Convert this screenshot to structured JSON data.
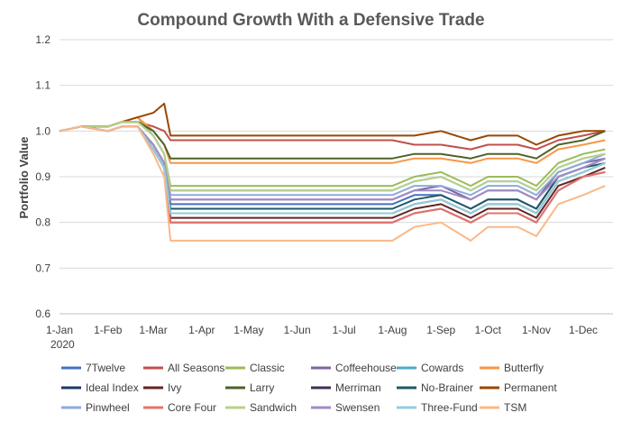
{
  "chart_data": {
    "type": "line",
    "title": "Compound Growth With a Defensive Trade",
    "xlabel": "",
    "ylabel": "Portfolio Value",
    "ylim": [
      0.6,
      1.2
    ],
    "yticks": [
      "0.6",
      "0.7",
      "0.8",
      "0.9",
      "1.0",
      "1.1",
      "1.2"
    ],
    "xticks": [
      "1-Jan",
      "1-Feb",
      "1-Mar",
      "1-Apr",
      "1-May",
      "1-Jun",
      "1-Jul",
      "1-Aug",
      "1-Sep",
      "1-Oct",
      "1-Nov",
      "1-Dec"
    ],
    "xtick_year": "2020",
    "grid": "horizontal",
    "legend_position": "bottom",
    "series": [
      {
        "name": "7Twelve",
        "color": "#4472c4",
        "x": [
          "2020-01-01",
          "2020-01-15",
          "2020-02-01",
          "2020-02-10",
          "2020-02-20",
          "2020-03-01",
          "2020-03-08",
          "2020-03-12",
          "2020-08-01",
          "2020-08-15",
          "2020-09-01",
          "2020-09-20",
          "2020-10-01",
          "2020-10-20",
          "2020-11-01",
          "2020-11-15",
          "2020-12-01",
          "2020-12-15"
        ],
        "y": [
          1.0,
          1.01,
          1.0,
          1.01,
          1.01,
          0.97,
          0.93,
          0.84,
          0.84,
          0.86,
          0.86,
          0.83,
          0.85,
          0.85,
          0.83,
          0.9,
          0.92,
          0.94
        ]
      },
      {
        "name": "All Seasons",
        "color": "#c0504d",
        "x": [
          "2020-01-01",
          "2020-01-15",
          "2020-02-01",
          "2020-02-10",
          "2020-02-20",
          "2020-03-01",
          "2020-03-08",
          "2020-03-12",
          "2020-08-01",
          "2020-08-15",
          "2020-09-01",
          "2020-09-20",
          "2020-10-01",
          "2020-10-20",
          "2020-11-01",
          "2020-11-15",
          "2020-12-01",
          "2020-12-15"
        ],
        "y": [
          1.0,
          1.01,
          1.01,
          1.02,
          1.02,
          1.01,
          1.0,
          0.98,
          0.98,
          0.97,
          0.97,
          0.96,
          0.97,
          0.97,
          0.96,
          0.98,
          0.99,
          1.0
        ]
      },
      {
        "name": "Classic",
        "color": "#9bbb59",
        "x": [
          "2020-01-01",
          "2020-01-15",
          "2020-02-01",
          "2020-02-10",
          "2020-02-20",
          "2020-03-01",
          "2020-03-08",
          "2020-03-12",
          "2020-08-01",
          "2020-08-15",
          "2020-09-01",
          "2020-09-20",
          "2020-10-01",
          "2020-10-20",
          "2020-11-01",
          "2020-11-15",
          "2020-12-01",
          "2020-12-15"
        ],
        "y": [
          1.0,
          1.01,
          1.01,
          1.02,
          1.03,
          0.99,
          0.95,
          0.88,
          0.88,
          0.9,
          0.91,
          0.88,
          0.9,
          0.9,
          0.88,
          0.93,
          0.95,
          0.96
        ]
      },
      {
        "name": "Coffeehouse",
        "color": "#8064a2",
        "x": [
          "2020-01-01",
          "2020-01-15",
          "2020-02-01",
          "2020-02-10",
          "2020-02-20",
          "2020-03-01",
          "2020-03-08",
          "2020-03-12",
          "2020-08-01",
          "2020-08-15",
          "2020-09-01",
          "2020-09-20",
          "2020-10-01",
          "2020-10-20",
          "2020-11-01",
          "2020-11-15",
          "2020-12-01",
          "2020-12-15"
        ],
        "y": [
          1.0,
          1.01,
          1.0,
          1.01,
          1.01,
          0.97,
          0.93,
          0.85,
          0.85,
          0.87,
          0.88,
          0.85,
          0.87,
          0.87,
          0.85,
          0.91,
          0.93,
          0.94
        ]
      },
      {
        "name": "Cowards",
        "color": "#4bacc6",
        "x": [
          "2020-01-01",
          "2020-01-15",
          "2020-02-01",
          "2020-02-10",
          "2020-02-20",
          "2020-03-01",
          "2020-03-08",
          "2020-03-12",
          "2020-08-01",
          "2020-08-15",
          "2020-09-01",
          "2020-09-20",
          "2020-10-01",
          "2020-10-20",
          "2020-11-01",
          "2020-11-15",
          "2020-12-01",
          "2020-12-15"
        ],
        "y": [
          1.0,
          1.01,
          1.01,
          1.02,
          1.02,
          0.99,
          0.95,
          0.87,
          0.87,
          0.89,
          0.9,
          0.87,
          0.89,
          0.89,
          0.87,
          0.92,
          0.94,
          0.95
        ]
      },
      {
        "name": "Butterfly",
        "color": "#f79646",
        "x": [
          "2020-01-01",
          "2020-01-15",
          "2020-02-01",
          "2020-02-10",
          "2020-02-20",
          "2020-03-01",
          "2020-03-08",
          "2020-03-12",
          "2020-08-01",
          "2020-08-15",
          "2020-09-01",
          "2020-09-20",
          "2020-10-01",
          "2020-10-20",
          "2020-11-01",
          "2020-11-15",
          "2020-12-01",
          "2020-12-15"
        ],
        "y": [
          1.0,
          1.01,
          1.01,
          1.02,
          1.03,
          1.0,
          0.97,
          0.93,
          0.93,
          0.94,
          0.94,
          0.93,
          0.94,
          0.94,
          0.93,
          0.96,
          0.97,
          0.98
        ]
      },
      {
        "name": "Ideal Index",
        "color": "#1f3864",
        "x": [
          "2020-01-01",
          "2020-01-15",
          "2020-02-01",
          "2020-02-10",
          "2020-02-20",
          "2020-03-01",
          "2020-03-08",
          "2020-03-12",
          "2020-08-01",
          "2020-08-15",
          "2020-09-01",
          "2020-09-20",
          "2020-10-01",
          "2020-10-20",
          "2020-11-01",
          "2020-11-15",
          "2020-12-01",
          "2020-12-15"
        ],
        "y": [
          1.0,
          1.01,
          1.0,
          1.01,
          1.01,
          0.96,
          0.92,
          0.8,
          0.8,
          0.82,
          0.83,
          0.8,
          0.82,
          0.82,
          0.8,
          0.87,
          0.9,
          0.91
        ]
      },
      {
        "name": "Ivy",
        "color": "#632523",
        "x": [
          "2020-01-01",
          "2020-01-15",
          "2020-02-01",
          "2020-02-10",
          "2020-02-20",
          "2020-03-01",
          "2020-03-08",
          "2020-03-12",
          "2020-08-01",
          "2020-08-15",
          "2020-09-01",
          "2020-09-20",
          "2020-10-01",
          "2020-10-20",
          "2020-11-01",
          "2020-11-15",
          "2020-12-01",
          "2020-12-15"
        ],
        "y": [
          1.0,
          1.01,
          1.0,
          1.01,
          1.01,
          0.96,
          0.92,
          0.81,
          0.81,
          0.83,
          0.84,
          0.81,
          0.83,
          0.83,
          0.81,
          0.88,
          0.9,
          0.92
        ]
      },
      {
        "name": "Larry",
        "color": "#4f6228",
        "x": [
          "2020-01-01",
          "2020-01-15",
          "2020-02-01",
          "2020-02-10",
          "2020-02-20",
          "2020-03-01",
          "2020-03-08",
          "2020-03-12",
          "2020-08-01",
          "2020-08-15",
          "2020-09-01",
          "2020-09-20",
          "2020-10-01",
          "2020-10-20",
          "2020-11-01",
          "2020-11-15",
          "2020-12-01",
          "2020-12-15"
        ],
        "y": [
          1.0,
          1.01,
          1.01,
          1.02,
          1.02,
          1.0,
          0.97,
          0.94,
          0.94,
          0.95,
          0.95,
          0.94,
          0.95,
          0.95,
          0.94,
          0.97,
          0.98,
          1.0
        ]
      },
      {
        "name": "Merriman",
        "color": "#3f3151",
        "x": [
          "2020-01-01",
          "2020-01-15",
          "2020-02-01",
          "2020-02-10",
          "2020-02-20",
          "2020-03-01",
          "2020-03-08",
          "2020-03-12",
          "2020-08-01",
          "2020-08-15",
          "2020-09-01",
          "2020-09-20",
          "2020-10-01",
          "2020-10-20",
          "2020-11-01",
          "2020-11-15",
          "2020-12-01",
          "2020-12-15"
        ],
        "y": [
          1.0,
          1.01,
          1.0,
          1.01,
          1.01,
          0.96,
          0.92,
          0.82,
          0.82,
          0.84,
          0.85,
          0.82,
          0.84,
          0.84,
          0.82,
          0.89,
          0.91,
          0.93
        ]
      },
      {
        "name": "No-Brainer",
        "color": "#215867",
        "x": [
          "2020-01-01",
          "2020-01-15",
          "2020-02-01",
          "2020-02-10",
          "2020-02-20",
          "2020-03-01",
          "2020-03-08",
          "2020-03-12",
          "2020-08-01",
          "2020-08-15",
          "2020-09-01",
          "2020-09-20",
          "2020-10-01",
          "2020-10-20",
          "2020-11-01",
          "2020-11-15",
          "2020-12-01",
          "2020-12-15"
        ],
        "y": [
          1.0,
          1.01,
          1.0,
          1.01,
          1.01,
          0.96,
          0.92,
          0.83,
          0.83,
          0.85,
          0.86,
          0.83,
          0.85,
          0.85,
          0.83,
          0.9,
          0.92,
          0.93
        ]
      },
      {
        "name": "Permanent",
        "color": "#984806",
        "x": [
          "2020-01-01",
          "2020-01-15",
          "2020-02-01",
          "2020-02-10",
          "2020-02-20",
          "2020-03-01",
          "2020-03-08",
          "2020-03-12",
          "2020-08-01",
          "2020-08-15",
          "2020-09-01",
          "2020-09-20",
          "2020-10-01",
          "2020-10-20",
          "2020-11-01",
          "2020-11-15",
          "2020-12-01",
          "2020-12-15"
        ],
        "y": [
          1.0,
          1.01,
          1.01,
          1.02,
          1.03,
          1.04,
          1.06,
          0.99,
          0.99,
          0.99,
          1.0,
          0.98,
          0.99,
          0.99,
          0.97,
          0.99,
          1.0,
          1.0
        ]
      },
      {
        "name": "Pinwheel",
        "color": "#8eaadb",
        "x": [
          "2020-01-01",
          "2020-01-15",
          "2020-02-01",
          "2020-02-10",
          "2020-02-20",
          "2020-03-01",
          "2020-03-08",
          "2020-03-12",
          "2020-08-01",
          "2020-08-15",
          "2020-09-01",
          "2020-09-20",
          "2020-10-01",
          "2020-10-20",
          "2020-11-01",
          "2020-11-15",
          "2020-12-01",
          "2020-12-15"
        ],
        "y": [
          1.0,
          1.01,
          1.0,
          1.01,
          1.01,
          0.97,
          0.93,
          0.86,
          0.86,
          0.88,
          0.88,
          0.86,
          0.88,
          0.88,
          0.86,
          0.91,
          0.93,
          0.95
        ]
      },
      {
        "name": "Core Four",
        "color": "#e6736b",
        "x": [
          "2020-01-01",
          "2020-01-15",
          "2020-02-01",
          "2020-02-10",
          "2020-02-20",
          "2020-03-01",
          "2020-03-08",
          "2020-03-12",
          "2020-08-01",
          "2020-08-15",
          "2020-09-01",
          "2020-09-20",
          "2020-10-01",
          "2020-10-20",
          "2020-11-01",
          "2020-11-15",
          "2020-12-01",
          "2020-12-15"
        ],
        "y": [
          1.0,
          1.01,
          1.0,
          1.01,
          1.01,
          0.96,
          0.92,
          0.8,
          0.8,
          0.82,
          0.83,
          0.8,
          0.82,
          0.82,
          0.8,
          0.87,
          0.9,
          0.91
        ]
      },
      {
        "name": "Sandwich",
        "color": "#b8d08a",
        "x": [
          "2020-01-01",
          "2020-01-15",
          "2020-02-01",
          "2020-02-10",
          "2020-02-20",
          "2020-03-01",
          "2020-03-08",
          "2020-03-12",
          "2020-08-01",
          "2020-08-15",
          "2020-09-01",
          "2020-09-20",
          "2020-10-01",
          "2020-10-20",
          "2020-11-01",
          "2020-11-15",
          "2020-12-01",
          "2020-12-15"
        ],
        "y": [
          1.0,
          1.01,
          1.01,
          1.02,
          1.02,
          0.99,
          0.95,
          0.87,
          0.87,
          0.89,
          0.9,
          0.87,
          0.89,
          0.89,
          0.87,
          0.92,
          0.94,
          0.95
        ]
      },
      {
        "name": "Swensen",
        "color": "#a08bc1",
        "x": [
          "2020-01-01",
          "2020-01-15",
          "2020-02-01",
          "2020-02-10",
          "2020-02-20",
          "2020-03-01",
          "2020-03-08",
          "2020-03-12",
          "2020-08-01",
          "2020-08-15",
          "2020-09-01",
          "2020-09-20",
          "2020-10-01",
          "2020-10-20",
          "2020-11-01",
          "2020-11-15",
          "2020-12-01",
          "2020-12-15"
        ],
        "y": [
          1.0,
          1.01,
          1.0,
          1.01,
          1.01,
          0.97,
          0.93,
          0.85,
          0.85,
          0.87,
          0.87,
          0.85,
          0.87,
          0.87,
          0.85,
          0.9,
          0.92,
          0.94
        ]
      },
      {
        "name": "Three-Fund",
        "color": "#92cddc",
        "x": [
          "2020-01-01",
          "2020-01-15",
          "2020-02-01",
          "2020-02-10",
          "2020-02-20",
          "2020-03-01",
          "2020-03-08",
          "2020-03-12",
          "2020-08-01",
          "2020-08-15",
          "2020-09-01",
          "2020-09-20",
          "2020-10-01",
          "2020-10-20",
          "2020-11-01",
          "2020-11-15",
          "2020-12-01",
          "2020-12-15"
        ],
        "y": [
          1.0,
          1.01,
          1.0,
          1.01,
          1.01,
          0.96,
          0.92,
          0.82,
          0.82,
          0.84,
          0.85,
          0.82,
          0.84,
          0.84,
          0.82,
          0.89,
          0.91,
          0.93
        ]
      },
      {
        "name": "TSM",
        "color": "#fab889",
        "x": [
          "2020-01-01",
          "2020-01-15",
          "2020-02-01",
          "2020-02-10",
          "2020-02-20",
          "2020-03-01",
          "2020-03-08",
          "2020-03-12",
          "2020-08-01",
          "2020-08-15",
          "2020-09-01",
          "2020-09-20",
          "2020-10-01",
          "2020-10-20",
          "2020-11-01",
          "2020-11-15",
          "2020-12-01",
          "2020-12-15"
        ],
        "y": [
          1.0,
          1.01,
          1.0,
          1.01,
          1.01,
          0.95,
          0.9,
          0.76,
          0.76,
          0.79,
          0.8,
          0.76,
          0.79,
          0.79,
          0.77,
          0.84,
          0.86,
          0.88
        ]
      }
    ]
  }
}
